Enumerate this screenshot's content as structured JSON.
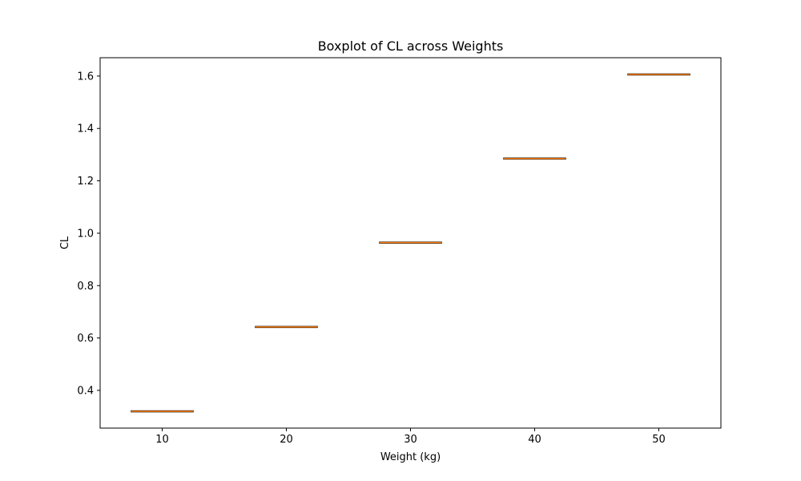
{
  "chart_data": {
    "type": "boxplot",
    "title": "Boxplot of CL across Weights",
    "xlabel": "Weight (kg)",
    "ylabel": "CL",
    "categories": [
      "10",
      "20",
      "30",
      "40",
      "50"
    ],
    "boxes": [
      {
        "category": "10",
        "min": 0.32,
        "q1": 0.32,
        "median": 0.32,
        "q3": 0.32,
        "max": 0.32
      },
      {
        "category": "20",
        "min": 0.642,
        "q1": 0.642,
        "median": 0.642,
        "q3": 0.642,
        "max": 0.642
      },
      {
        "category": "30",
        "min": 0.964,
        "q1": 0.964,
        "median": 0.964,
        "q3": 0.964,
        "max": 0.964
      },
      {
        "category": "40",
        "min": 1.285,
        "q1": 1.285,
        "median": 1.285,
        "q3": 1.285,
        "max": 1.285
      },
      {
        "category": "50",
        "min": 1.606,
        "q1": 1.606,
        "median": 1.606,
        "q3": 1.606,
        "max": 1.606
      }
    ],
    "ylim": [
      0.256,
      1.67
    ],
    "xlim": [
      5,
      55
    ],
    "yticks": [
      0.4,
      0.6,
      0.8,
      1.0,
      1.2,
      1.4,
      1.6
    ],
    "ytick_labels": [
      "0.4",
      "0.6",
      "0.8",
      "1.0",
      "1.2",
      "1.4",
      "1.6"
    ],
    "grid": false,
    "colors": {
      "median": "#ff7f0e",
      "box": "#000000",
      "axes": "#000000"
    }
  }
}
